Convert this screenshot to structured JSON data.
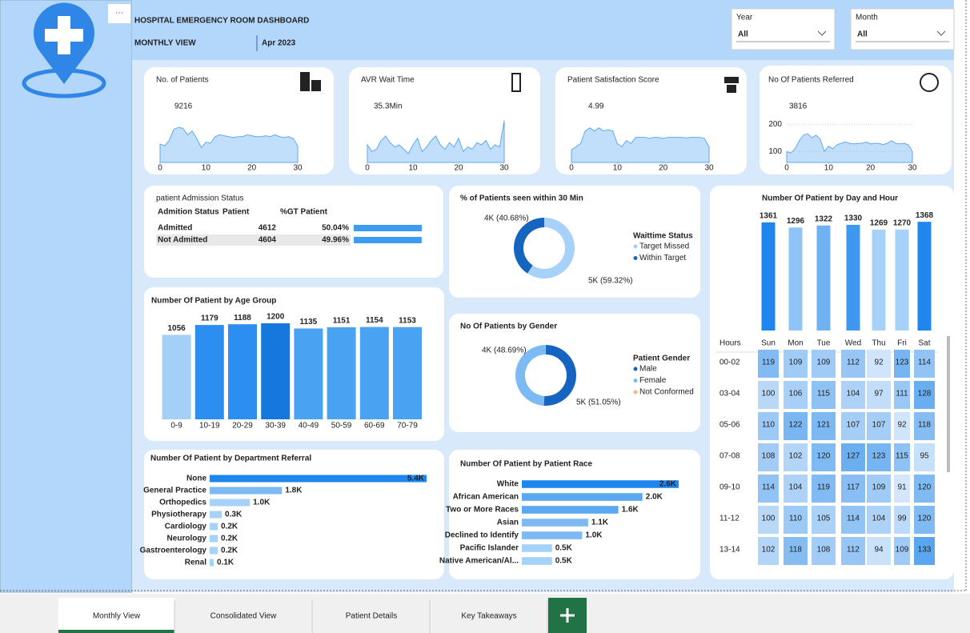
{
  "header": {
    "title": "HOSPITAL EMERGENCY ROOM DASHBOARD",
    "view": "MONTHLY VIEW",
    "period": "Apr 2023"
  },
  "filters": [
    {
      "label": "Year",
      "value": "All"
    },
    {
      "label": "Month",
      "value": "All"
    }
  ],
  "kpis": [
    {
      "title": "No. of Patients",
      "value": 9216
    },
    {
      "title": "AVR Wait Time",
      "value": "35.3Min"
    },
    {
      "title": "Patient Satisfaction Score",
      "value": 4.99
    },
    {
      "title": "No Of Patients Referred",
      "value": 3816
    }
  ],
  "admission_table": {
    "title": "patient Admission Status",
    "columns": [
      "Admition Status",
      "Patient",
      "%GT Patient"
    ],
    "rows": [
      [
        "Admitted",
        4612,
        "50.04%"
      ],
      [
        "Not Admitted",
        4604,
        "49.96%"
      ]
    ],
    "bar_color": "#3d9bf2"
  },
  "chart_data": [
    {
      "type": "area",
      "x": [
        0,
        1,
        2,
        3,
        4,
        5,
        6,
        7,
        8,
        9,
        10,
        11,
        12,
        13,
        14,
        15,
        16,
        17,
        18,
        19,
        20,
        21,
        22,
        23,
        24,
        25,
        26,
        27,
        28,
        29,
        30
      ],
      "values": [
        250,
        240,
        270,
        330,
        340,
        335,
        300,
        320,
        280,
        230,
        260,
        255,
        290,
        300,
        295,
        290,
        285,
        290,
        290,
        300,
        295,
        290,
        290,
        295,
        290,
        300,
        290,
        285,
        290,
        280,
        240
      ],
      "xlim": [
        0,
        30
      ],
      "ylim": [
        150,
        380
      ],
      "xticks": [
        0,
        10,
        20,
        30
      ],
      "color": "#8ec5f6"
    },
    {
      "type": "area",
      "x": [
        0,
        1,
        2,
        3,
        4,
        5,
        6,
        7,
        8,
        9,
        10,
        11,
        12,
        13,
        14,
        15,
        16,
        17,
        18,
        19,
        20,
        21,
        22,
        23,
        24,
        25,
        26,
        27,
        28,
        29,
        30
      ],
      "values": [
        36,
        33,
        34,
        38,
        40,
        37,
        35,
        36,
        34,
        32,
        36,
        39,
        33,
        35,
        38,
        40,
        36,
        34,
        37,
        35,
        39,
        33,
        35,
        34,
        37,
        36,
        38,
        34,
        36,
        35,
        47
      ],
      "xlim": [
        0,
        30
      ],
      "ylim": [
        28,
        48
      ],
      "xticks": [
        0,
        10,
        20,
        30
      ],
      "color": "#8ec5f6"
    },
    {
      "type": "area",
      "x": [
        0,
        1,
        2,
        3,
        4,
        5,
        6,
        7,
        8,
        9,
        10,
        11,
        12,
        13,
        14,
        15,
        16,
        17,
        18,
        19,
        20,
        21,
        22,
        23,
        24,
        25,
        26,
        27,
        28,
        29,
        30
      ],
      "values": [
        4.8,
        4.85,
        4.9,
        5.1,
        5.15,
        5.1,
        5.15,
        5.1,
        5.12,
        5.1,
        4.9,
        4.85,
        4.95,
        4.9,
        5.0,
        5.0,
        5.0,
        4.98,
        5.0,
        5.0,
        4.98,
        5.0,
        5.0,
        5.0,
        5.0,
        4.99,
        5.0,
        5.0,
        5.0,
        4.98,
        4.85
      ],
      "xlim": [
        0,
        30
      ],
      "ylim": [
        4.6,
        5.3
      ],
      "xticks": [
        0,
        10,
        20,
        30
      ],
      "color": "#8ec5f6"
    },
    {
      "type": "area",
      "x": [
        0,
        1,
        2,
        3,
        4,
        5,
        6,
        7,
        8,
        9,
        10,
        11,
        12,
        13,
        14,
        15,
        16,
        17,
        18,
        19,
        20,
        21,
        22,
        23,
        24,
        25,
        26,
        27,
        28,
        29,
        30
      ],
      "values": [
        100,
        95,
        110,
        140,
        160,
        165,
        150,
        160,
        145,
        100,
        120,
        110,
        125,
        130,
        135,
        130,
        128,
        130,
        130,
        135,
        128,
        130,
        130,
        125,
        130,
        140,
        130,
        128,
        130,
        125,
        100
      ],
      "xlim": [
        0,
        30
      ],
      "ylim": [
        60,
        230
      ],
      "xticks": [
        0,
        10,
        20,
        30
      ],
      "yticks": [
        100,
        200
      ],
      "color": "#8ec5f6"
    },
    {
      "type": "donut",
      "title": "% of Patients seen within 30 Min",
      "legend_title": "Waittime Status",
      "categories": [
        "Target Missed",
        "Within Target"
      ],
      "values": [
        59.32,
        40.68
      ],
      "value_labels": [
        "5K (59.32%)",
        "4K (40.68%)"
      ],
      "colors": [
        "#a6d1f8",
        "#1565c0"
      ]
    },
    {
      "type": "bar",
      "title": "Number Of Patient by Age Group",
      "categories": [
        "0-9",
        "10-19",
        "20-29",
        "30-39",
        "40-49",
        "50-59",
        "60-69",
        "70-79"
      ],
      "values": [
        1056,
        1179,
        1188,
        1200,
        1135,
        1151,
        1154,
        1153
      ],
      "ylim": [
        0,
        1300
      ],
      "colors": [
        "#a4cff7",
        "#2b8ef0",
        "#2b8ef0",
        "#1677dd",
        "#4aa2f2",
        "#4aa2f2",
        "#4aa2f2",
        "#4aa2f2"
      ]
    },
    {
      "type": "donut",
      "title": "No Of Patients by Gender",
      "legend_title": "Patient Gender",
      "categories": [
        "Male",
        "Female",
        "Not Conformed"
      ],
      "values": [
        51.05,
        48.69,
        0.26
      ],
      "value_labels": [
        "5K (51.05%)",
        "4K (48.69%)",
        null
      ],
      "colors": [
        "#1565c0",
        "#7dbaf3",
        "#f5b97a"
      ]
    },
    {
      "type": "hbar",
      "title": "Number Of Patient by Department Referral",
      "categories": [
        "None",
        "General Practice",
        "Orthopedics",
        "Physiotherapy",
        "Cardiology",
        "Neurology",
        "Gastroenterology",
        "Renal"
      ],
      "values": [
        5400,
        1800,
        1000,
        300,
        200,
        200,
        200,
        100
      ],
      "value_labels": [
        "5.4K",
        "1.8K",
        "1.0K",
        "0.3K",
        "0.2K",
        "0.2K",
        "0.2K",
        "0.1K"
      ],
      "xlim": [
        0,
        5400
      ],
      "colors": [
        "#1f86ee",
        "#7dbaf3",
        "#a6d1f8",
        "#a6d1f8",
        "#a6d1f8",
        "#a6d1f8",
        "#a6d1f8",
        "#a6d1f8"
      ]
    },
    {
      "type": "hbar",
      "title": "Number Of Patient by Patient Race",
      "categories": [
        "White",
        "African American",
        "Two or More Races",
        "Asian",
        "Declined to Identify",
        "Pacific Islander",
        "Native American/Al..."
      ],
      "values": [
        2600,
        2000,
        1600,
        1100,
        1000,
        500,
        500
      ],
      "value_labels": [
        "2.6K",
        "2.0K",
        "1.6K",
        "1.1K",
        "1.0K",
        "0.5K",
        "0.5K"
      ],
      "xlim": [
        0,
        2600
      ],
      "colors": [
        "#1f86ee",
        "#5aa8f2",
        "#5aa8f2",
        "#7dbaf3",
        "#7dbaf3",
        "#a6d1f8",
        "#a6d1f8"
      ]
    },
    {
      "type": "bar",
      "title": "Number Of Patient by Day and Hour",
      "categories": [
        "Sun",
        "Mon",
        "Tue",
        "Wed",
        "Thu",
        "Fri",
        "Sat"
      ],
      "values": [
        1361,
        1296,
        1322,
        1330,
        1269,
        1270,
        1368
      ],
      "ylim": [
        0,
        1400
      ],
      "colors": [
        "#1f86ee",
        "#8fc4f6",
        "#6fb2f4",
        "#3e98f0",
        "#a6d1f8",
        "#a6d1f8",
        "#1f86ee"
      ]
    },
    {
      "type": "heatmap",
      "row_title": "Hours",
      "rows": [
        "00-02",
        "03-04",
        "05-06",
        "07-08",
        "09-10",
        "11-12",
        "13-14"
      ],
      "values": [
        [
          119,
          109,
          109,
          112,
          92,
          123,
          114
        ],
        [
          100,
          106,
          115,
          104,
          97,
          111,
          128
        ],
        [
          110,
          122,
          121,
          107,
          107,
          92,
          118
        ],
        [
          108,
          102,
          120,
          127,
          123,
          115,
          95
        ],
        [
          114,
          104,
          119,
          117,
          109,
          91,
          120
        ],
        [
          100,
          110,
          105,
          114,
          104,
          99,
          120
        ],
        [
          102,
          118,
          108,
          112,
          94,
          109,
          133
        ]
      ],
      "colors": [
        "#d3e6fb",
        "#5aa6ef"
      ]
    }
  ],
  "tabs": [
    "Monthly View",
    "Consolidated View",
    "Patient Details",
    "Key Takeaways"
  ]
}
